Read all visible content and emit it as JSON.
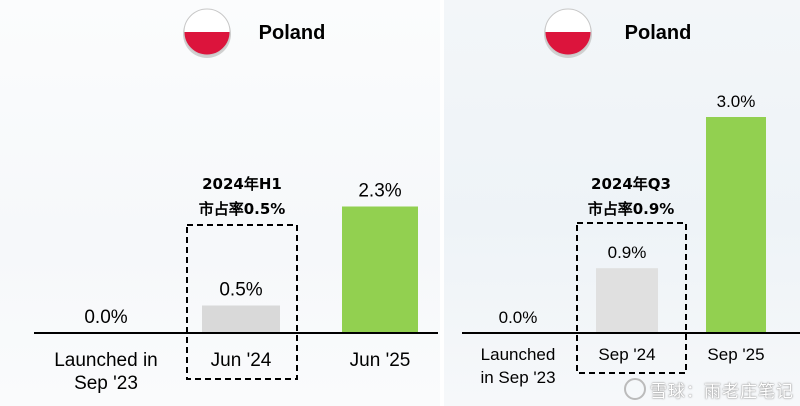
{
  "chart_data": [
    {
      "type": "bar",
      "title": "Poland",
      "categories": [
        "Launched in Sep '23",
        "Jun '24",
        "Jun '25"
      ],
      "category_lines": [
        [
          "Launched in",
          "Sep '23"
        ],
        [
          "Jun '24"
        ],
        [
          "Jun '25"
        ]
      ],
      "values": [
        0.0,
        0.5,
        2.3
      ],
      "data_labels": [
        "0.0%",
        "0.5%",
        "2.3%"
      ],
      "bar_colors": [
        "#d9d9d9",
        "#d9d9d9",
        "#92d050"
      ],
      "ylim": [
        0,
        3.2
      ],
      "highlight": {
        "category_index": 1,
        "lines": [
          "2024年H1",
          "市占率0.5%"
        ]
      }
    },
    {
      "type": "bar",
      "title": "Poland",
      "categories": [
        "Launched in Sep '23",
        "Sep '24",
        "Sep '25"
      ],
      "category_lines": [
        [
          "Launched",
          "in Sep '23"
        ],
        [
          "Sep '24"
        ],
        [
          "Sep '25"
        ]
      ],
      "values": [
        0.0,
        0.9,
        3.0
      ],
      "data_labels": [
        "0.0%",
        "0.9%",
        "3.0%"
      ],
      "bar_colors": [
        "#d9d9d9",
        "#e0e0e0",
        "#92d050"
      ],
      "ylim": [
        0,
        3.2
      ],
      "highlight": {
        "category_index": 1,
        "lines": [
          "2024年Q3",
          "市占率0.9%"
        ]
      }
    }
  ],
  "watermark": "雪球：雨老庄笔记",
  "flag_colors": {
    "top": "#ffffff",
    "bottom": "#dc143c"
  }
}
